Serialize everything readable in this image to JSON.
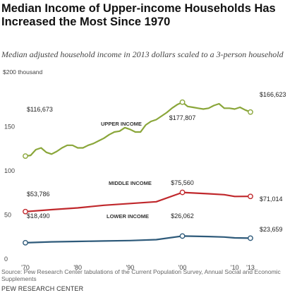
{
  "title": "Median Income of Upper-income Households Has Increased the Most Since 1970",
  "subtitle": "Median adjusted household income in 2013 dollars scaled to a 3-person household",
  "source": "Source: Pew Research Center tabulations of the Current Population Survey, Annual Social and Economic Supplements",
  "credit": "PEW RESEARCH CENTER",
  "chart_data": {
    "type": "line",
    "title": "Median Income of Upper-income Households Has Increased the Most Since 1970",
    "ylabel": "$200 thousand",
    "xlabel": "",
    "xlim": [
      1970,
      2013
    ],
    "ylim": [
      0,
      200
    ],
    "y_unit": "thousand 2013 dollars",
    "y_ticks": [
      {
        "value": 200,
        "label": "$200 thousand"
      },
      {
        "value": 150,
        "label": "150"
      },
      {
        "value": 100,
        "label": "100"
      },
      {
        "value": 50,
        "label": "50"
      },
      {
        "value": 0,
        "label": "0"
      }
    ],
    "x_ticks": [
      {
        "value": 1970,
        "label": "'70"
      },
      {
        "value": 1980,
        "label": "'80"
      },
      {
        "value": 1990,
        "label": "'90"
      },
      {
        "value": 2000,
        "label": "'00"
      },
      {
        "value": 2010,
        "label": "'10"
      },
      {
        "value": 2013,
        "label": "'13"
      }
    ],
    "grid": false,
    "series": [
      {
        "name": "UPPER INCOME",
        "color": "#8aa63a",
        "x": [
          1970,
          1971,
          1972,
          1973,
          1974,
          1975,
          1976,
          1977,
          1978,
          1979,
          1980,
          1981,
          1982,
          1983,
          1984,
          1985,
          1986,
          1987,
          1988,
          1989,
          1990,
          1991,
          1992,
          1993,
          1994,
          1995,
          1996,
          1997,
          1998,
          1999,
          2000,
          2001,
          2002,
          2003,
          2004,
          2005,
          2006,
          2007,
          2008,
          2009,
          2010,
          2011,
          2012,
          2013
        ],
        "values": [
          116.673,
          117.5,
          124,
          126,
          121,
          119,
          122,
          126,
          129,
          129,
          126,
          126,
          129,
          131,
          134,
          137,
          141,
          144,
          145,
          149,
          147,
          144,
          144,
          152,
          156,
          158,
          162,
          166,
          171,
          175,
          177.807,
          173,
          172,
          171,
          170,
          171,
          174,
          176,
          171,
          171,
          170,
          172,
          169,
          166.623
        ],
        "start_label": "$116,673",
        "peak_label": "$177,807",
        "end_label": "$166,623"
      },
      {
        "name": "MIDDLE INCOME",
        "color": "#c0282c",
        "x": [
          1970,
          1975,
          1980,
          1985,
          1990,
          1995,
          2000,
          2005,
          2008,
          2010,
          2013
        ],
        "values": [
          53.786,
          56,
          58,
          61,
          63,
          65,
          75.56,
          74,
          73,
          71,
          71.014
        ],
        "start_label": "$53,786",
        "peak_label": "$75,560",
        "end_label": "$71,014"
      },
      {
        "name": "LOWER INCOME",
        "color": "#2e5a7a",
        "x": [
          1970,
          1975,
          1980,
          1985,
          1990,
          1995,
          2000,
          2005,
          2008,
          2010,
          2013
        ],
        "values": [
          18.49,
          19.5,
          20,
          20.5,
          21,
          22,
          26.062,
          25.5,
          25,
          24,
          23.659
        ],
        "start_label": "$18,490",
        "peak_label": "$26,062",
        "end_label": "$23,659"
      }
    ]
  }
}
